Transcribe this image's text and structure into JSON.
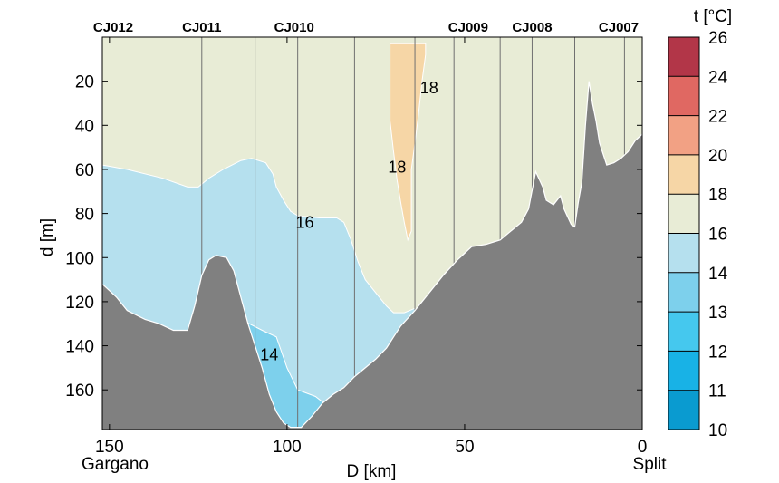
{
  "chart_data": {
    "type": "heatmap",
    "title": "",
    "xlabel": "D [km]",
    "ylabel": "d [m]",
    "x_left_label": "Gargano",
    "x_right_label": "Split",
    "xlim": [
      152,
      0
    ],
    "ylim": [
      0,
      178
    ],
    "x_ticks": [
      150,
      100,
      50,
      0
    ],
    "y_ticks": [
      20,
      40,
      60,
      80,
      100,
      120,
      140,
      160
    ],
    "stations": [
      {
        "name": "CJ012",
        "km": 152
      },
      {
        "name": "CJ011",
        "km": 124
      },
      {
        "name": "CJ010",
        "km": 98
      },
      {
        "name": "CJ009",
        "km": 49
      },
      {
        "name": "CJ008",
        "km": 31
      },
      {
        "name": "CJ007",
        "km": 5
      }
    ],
    "profile_lines_km": [
      124,
      109,
      97,
      81,
      64,
      53,
      40,
      31,
      19,
      5
    ],
    "contour_labels": [
      {
        "text": "18",
        "km": 60,
        "depth": 23
      },
      {
        "text": "18",
        "km": 69,
        "depth": 59
      },
      {
        "text": "16",
        "km": 95,
        "depth": 84
      },
      {
        "text": "14",
        "km": 105,
        "depth": 144
      }
    ],
    "colorbar": {
      "title": "t [°C]",
      "levels": [
        10,
        11,
        12,
        13,
        14,
        16,
        18,
        20,
        22,
        24,
        26
      ],
      "tick_labels": [
        "10",
        "11",
        "12",
        "13",
        "14",
        "16",
        "18",
        "20",
        "22",
        "24",
        "26"
      ],
      "colors": [
        "#0a9bd0",
        "#18b2e6",
        "#45c8ee",
        "#7dd0ec",
        "#b5e0ee",
        "#e8ecd6",
        "#f6d6a6",
        "#f2a184",
        "#e06862",
        "#b23648"
      ]
    },
    "zones": [
      {
        "range": "16-18",
        "color": "#e8ecd6",
        "points": [
          [
            152,
            0
          ],
          [
            0,
            0
          ],
          [
            0,
            178
          ],
          [
            152,
            178
          ]
        ]
      },
      {
        "range": "14-16",
        "color": "#b5e0ee",
        "points": [
          [
            152,
            58
          ],
          [
            145,
            60
          ],
          [
            135,
            64
          ],
          [
            128,
            68
          ],
          [
            125,
            68
          ],
          [
            122,
            64
          ],
          [
            118,
            60
          ],
          [
            113,
            56
          ],
          [
            110,
            55
          ],
          [
            106,
            57
          ],
          [
            104,
            62
          ],
          [
            103,
            68
          ],
          [
            101,
            74
          ],
          [
            99,
            79
          ],
          [
            97,
            81
          ],
          [
            91,
            82
          ],
          [
            86,
            82
          ],
          [
            84,
            84
          ],
          [
            82,
            92
          ],
          [
            80,
            102
          ],
          [
            78,
            110
          ],
          [
            75,
            116
          ],
          [
            72,
            122
          ],
          [
            70,
            125
          ],
          [
            67,
            125
          ],
          [
            64,
            123
          ],
          [
            64,
            178
          ],
          [
            152,
            178
          ]
        ]
      },
      {
        "range": "13-14",
        "color": "#7dd0ec",
        "points": [
          [
            113,
            128
          ],
          [
            107,
            133
          ],
          [
            103,
            136
          ],
          [
            100,
            150
          ],
          [
            97,
            160
          ],
          [
            92,
            163
          ],
          [
            88,
            168
          ],
          [
            88,
            178
          ],
          [
            118,
            178
          ],
          [
            112,
            150
          ]
        ]
      },
      {
        "range": "18-20",
        "color": "#f6d6a6",
        "points": [
          [
            71,
            3
          ],
          [
            61,
            3
          ],
          [
            61,
            8
          ],
          [
            62,
            20
          ],
          [
            63,
            35
          ],
          [
            64,
            48
          ],
          [
            65,
            60
          ],
          [
            65,
            70
          ],
          [
            65,
            80
          ],
          [
            65,
            88
          ],
          [
            66,
            92
          ],
          [
            67,
            84
          ],
          [
            68,
            75
          ],
          [
            69,
            65
          ],
          [
            70,
            52
          ],
          [
            71,
            38
          ],
          [
            71,
            18
          ]
        ]
      }
    ],
    "bathymetry": [
      [
        152,
        112
      ],
      [
        148,
        118
      ],
      [
        145,
        124
      ],
      [
        140,
        128
      ],
      [
        136,
        130
      ],
      [
        132,
        133
      ],
      [
        128,
        133
      ],
      [
        126,
        122
      ],
      [
        124,
        108
      ],
      [
        122,
        101
      ],
      [
        120,
        99
      ],
      [
        117,
        100
      ],
      [
        115,
        106
      ],
      [
        113,
        118
      ],
      [
        111,
        130
      ],
      [
        109,
        140
      ],
      [
        107,
        150
      ],
      [
        105,
        162
      ],
      [
        103,
        170
      ],
      [
        101,
        175
      ],
      [
        99,
        177
      ],
      [
        96,
        177
      ],
      [
        93,
        172
      ],
      [
        90,
        166
      ],
      [
        87,
        162
      ],
      [
        84,
        159
      ],
      [
        81,
        154
      ],
      [
        78,
        150
      ],
      [
        75,
        146
      ],
      [
        72,
        141
      ],
      [
        70,
        136
      ],
      [
        68,
        131
      ],
      [
        64,
        124
      ],
      [
        60,
        116
      ],
      [
        56,
        108
      ],
      [
        52,
        101
      ],
      [
        48,
        95
      ],
      [
        44,
        94
      ],
      [
        40,
        92
      ],
      [
        37,
        88
      ],
      [
        34,
        84
      ],
      [
        32,
        78
      ],
      [
        30,
        61
      ],
      [
        28,
        68
      ],
      [
        27,
        74
      ],
      [
        25,
        76
      ],
      [
        23,
        72
      ],
      [
        22,
        78
      ],
      [
        20,
        85
      ],
      [
        19,
        86
      ],
      [
        18,
        75
      ],
      [
        17,
        66
      ],
      [
        16,
        40
      ],
      [
        15,
        20
      ],
      [
        14,
        30
      ],
      [
        13,
        38
      ],
      [
        12,
        48
      ],
      [
        10,
        58
      ],
      [
        8,
        57
      ],
      [
        6,
        55
      ],
      [
        4,
        52
      ],
      [
        2,
        47
      ],
      [
        0,
        44
      ],
      [
        0,
        178
      ],
      [
        152,
        178
      ]
    ]
  }
}
